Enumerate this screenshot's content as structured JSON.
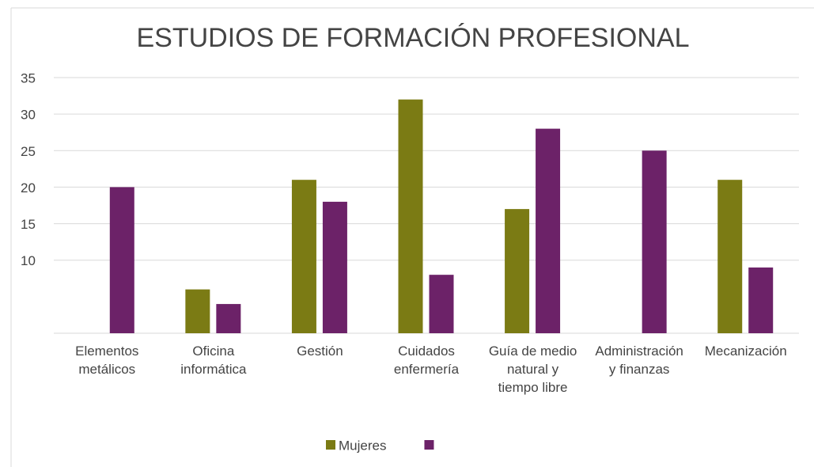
{
  "chart_data": {
    "type": "bar",
    "title": "ESTUDIOS DE FORMACIÓN PROFESIONAL",
    "categories": [
      "Elementos metálicos",
      "Oficina informática",
      "Gestión",
      "Cuidados enfermería",
      "Guía de medio natural y tiempo libre",
      "Administración y finanzas",
      "Mecanización"
    ],
    "series": [
      {
        "name": "Mujeres",
        "color": "#7b7b14",
        "values": [
          null,
          6,
          21,
          32,
          17,
          null,
          21
        ]
      },
      {
        "name": null,
        "color": "#6c2268",
        "values": [
          20,
          4,
          18,
          8,
          28,
          25,
          9
        ]
      }
    ],
    "ylim": [
      0,
      35
    ],
    "yticks": [
      10,
      15,
      20,
      25,
      30,
      35
    ],
    "grid": true,
    "legend": "bottom"
  }
}
